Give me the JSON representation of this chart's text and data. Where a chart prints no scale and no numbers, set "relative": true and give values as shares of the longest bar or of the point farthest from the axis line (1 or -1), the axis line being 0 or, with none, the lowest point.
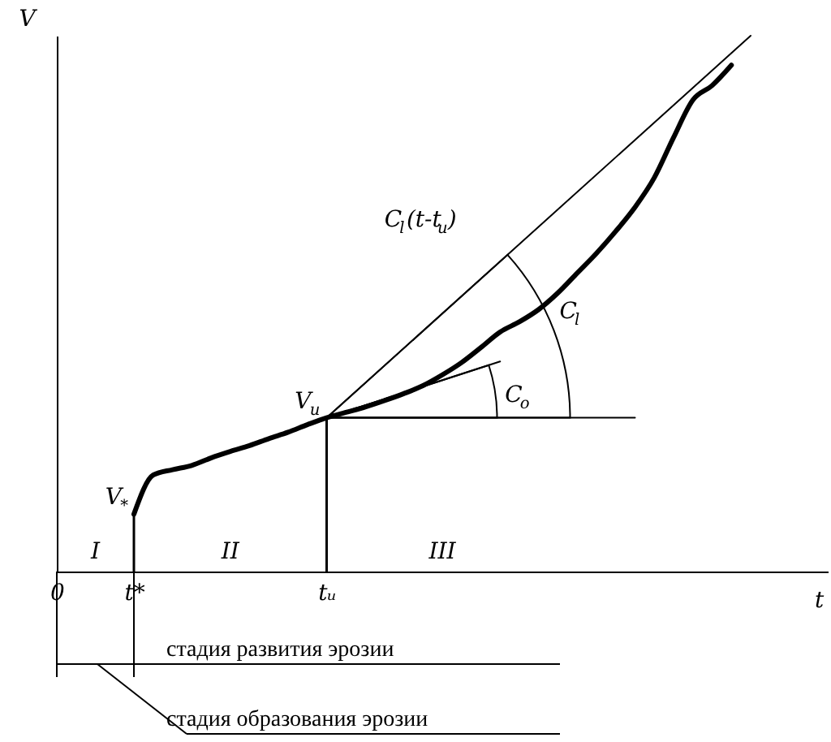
{
  "chart_data": {
    "type": "line",
    "relative": true,
    "xlabel": "t",
    "ylabel": "V",
    "categories": [
      "0",
      null,
      null,
      null,
      "t*",
      null,
      null,
      null,
      null,
      null,
      null,
      null,
      null,
      null,
      "tᵤ",
      null,
      null,
      null,
      null,
      null,
      null,
      null,
      null,
      null,
      null,
      null,
      null,
      null,
      null,
      null,
      null,
      null,
      null,
      null,
      null,
      null,
      null,
      null,
      null,
      null,
      null
    ],
    "series": [
      {
        "color": "#000000",
        "values": [
          null,
          null,
          null,
          null,
          0.107,
          0.18,
          0.19,
          0.198,
          0.212,
          0.224,
          0.235,
          0.248,
          0.26,
          0.274,
          0.287,
          0.297,
          0.307,
          0.319,
          0.332,
          0.347,
          0.367,
          0.39,
          0.418,
          0.447,
          0.466,
          0.489,
          0.52,
          0.557,
          0.594,
          0.635,
          0.68,
          0.735,
          0.81,
          0.88,
          0.907,
          0.945,
          null,
          null,
          null,
          null,
          null
        ]
      },
      {
        "color": "#000000",
        "values": [
          null,
          null,
          null,
          null,
          null,
          null,
          null,
          null,
          null,
          null,
          null,
          null,
          null,
          null,
          0.287,
          null,
          null,
          null,
          null,
          null,
          null,
          null,
          null,
          null,
          null,
          null,
          null,
          null,
          null,
          null,
          null,
          null,
          null,
          null,
          null,
          null,
          1.0,
          null,
          null,
          null,
          null
        ]
      },
      {
        "color": "#000000",
        "values": [
          null,
          null,
          null,
          null,
          null,
          null,
          null,
          null,
          null,
          null,
          null,
          null,
          null,
          null,
          0.287,
          null,
          null,
          null,
          null,
          null,
          null,
          null,
          null,
          null,
          null,
          null,
          null,
          null,
          null,
          null,
          0.287,
          null,
          null,
          null,
          null,
          null,
          null,
          null,
          null,
          null,
          null
        ]
      },
      {
        "color": "#000000",
        "values": [
          null,
          null,
          null,
          null,
          null,
          null,
          null,
          null,
          null,
          null,
          null,
          null,
          null,
          null,
          0.287,
          null,
          null,
          null,
          null,
          null,
          null,
          null,
          null,
          0.392,
          null,
          null,
          null,
          null,
          null,
          null,
          null,
          null,
          null,
          null,
          null,
          null,
          null,
          null,
          null,
          null,
          null
        ]
      },
      {
        "type": "bar",
        "color": "#000000",
        "values": [
          null,
          null,
          null,
          null,
          0.107,
          null,
          null,
          null,
          null,
          null,
          null,
          null,
          null,
          null,
          0.287,
          null,
          null,
          null,
          null,
          null,
          null,
          null,
          null,
          null,
          null,
          null,
          null,
          null,
          null,
          null,
          null,
          null,
          null,
          null,
          null,
          null,
          null,
          null,
          null,
          null,
          null
        ]
      }
    ],
    "annotations": [
      "V$_{*}$",
      "V$_{u}$",
      "C$_{l}$(t-t$_{u}$)",
      "C$_{l}$",
      "C$_{o}$",
      "I",
      "II",
      "III",
      "стадия развития эрозии",
      "стадия образования эрозии"
    ]
  }
}
